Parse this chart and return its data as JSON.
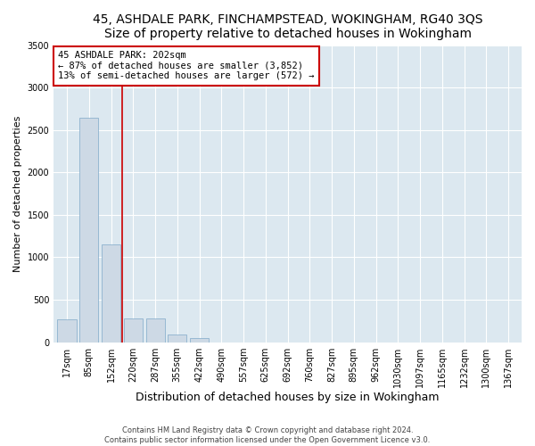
{
  "title": "45, ASHDALE PARK, FINCHAMPSTEAD, WOKINGHAM, RG40 3QS",
  "subtitle": "Size of property relative to detached houses in Wokingham",
  "xlabel": "Distribution of detached houses by size in Wokingham",
  "ylabel": "Number of detached properties",
  "categories": [
    "17sqm",
    "85sqm",
    "152sqm",
    "220sqm",
    "287sqm",
    "355sqm",
    "422sqm",
    "490sqm",
    "557sqm",
    "625sqm",
    "692sqm",
    "760sqm",
    "827sqm",
    "895sqm",
    "962sqm",
    "1030sqm",
    "1097sqm",
    "1165sqm",
    "1232sqm",
    "1300sqm",
    "1367sqm"
  ],
  "values": [
    270,
    2640,
    1150,
    280,
    280,
    90,
    50,
    0,
    0,
    0,
    0,
    0,
    0,
    0,
    0,
    0,
    0,
    0,
    0,
    0,
    0
  ],
  "bar_color": "#cdd9e5",
  "bar_edge_color": "#7fa8c8",
  "vline_x": 2.5,
  "vline_color": "#cc0000",
  "annotation_text": "45 ASHDALE PARK: 202sqm\n← 87% of detached houses are smaller (3,852)\n13% of semi-detached houses are larger (572) →",
  "annotation_box_facecolor": "#ffffff",
  "annotation_box_edgecolor": "#cc0000",
  "ylim": [
    0,
    3500
  ],
  "yticks": [
    0,
    500,
    1000,
    1500,
    2000,
    2500,
    3000,
    3500
  ],
  "footer_line1": "Contains HM Land Registry data © Crown copyright and database right 2024.",
  "footer_line2": "Contains public sector information licensed under the Open Government Licence v3.0.",
  "fig_facecolor": "#ffffff",
  "plot_facecolor": "#dce8f0",
  "title_fontsize": 10,
  "subtitle_fontsize": 9,
  "ylabel_fontsize": 8,
  "xlabel_fontsize": 9,
  "tick_fontsize": 7,
  "annotation_fontsize": 7.5,
  "footer_fontsize": 6
}
